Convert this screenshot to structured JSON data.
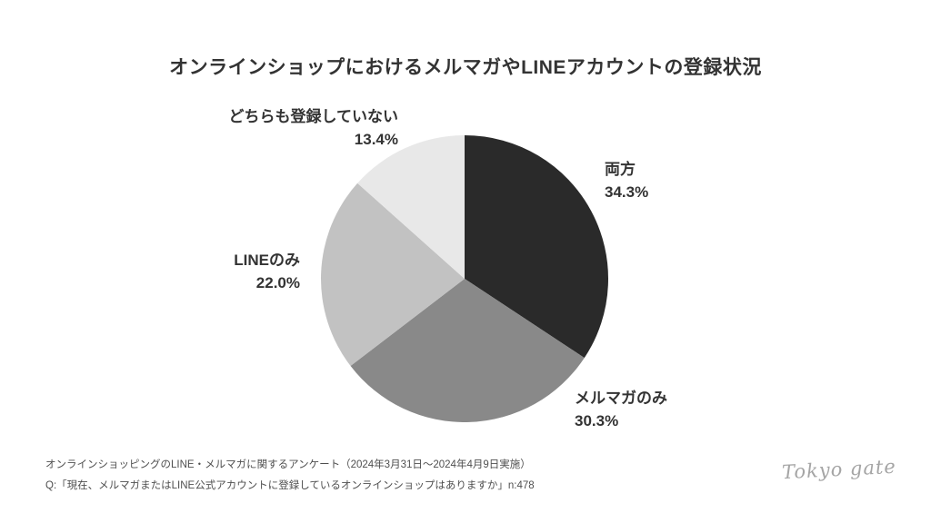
{
  "title": "オンラインショップにおけるメルマガやLINEアカウントの登録状況",
  "chart_data": {
    "type": "pie",
    "title": "オンラインショップにおけるメルマガやLINEアカウントの登録状況",
    "start_angle_deg": -90,
    "direction": "clockwise",
    "legend_position": "outside-labels",
    "total": 100,
    "segments": [
      {
        "label": "両方",
        "value": 34.3,
        "display": "34.3%",
        "color": "#2a2a2a"
      },
      {
        "label": "メルマガのみ",
        "value": 30.3,
        "display": "30.3%",
        "color": "#898989"
      },
      {
        "label": "LINEのみ",
        "value": 22.0,
        "display": "22.0%",
        "color": "#c2c2c2"
      },
      {
        "label": "どちらも登録していない",
        "value": 13.4,
        "display": "13.4%",
        "color": "#e8e8e8"
      }
    ]
  },
  "footer": {
    "line1": "オンラインショッピングのLINE・メルマガに関するアンケート（2024年3月31日～2024年4月9日実施）",
    "line2": "Q:「現在、メルマガまたはLINE公式アカウントに登録しているオンラインショップはありますか」n:478"
  },
  "logo": {
    "text": "Tokyo gate"
  }
}
